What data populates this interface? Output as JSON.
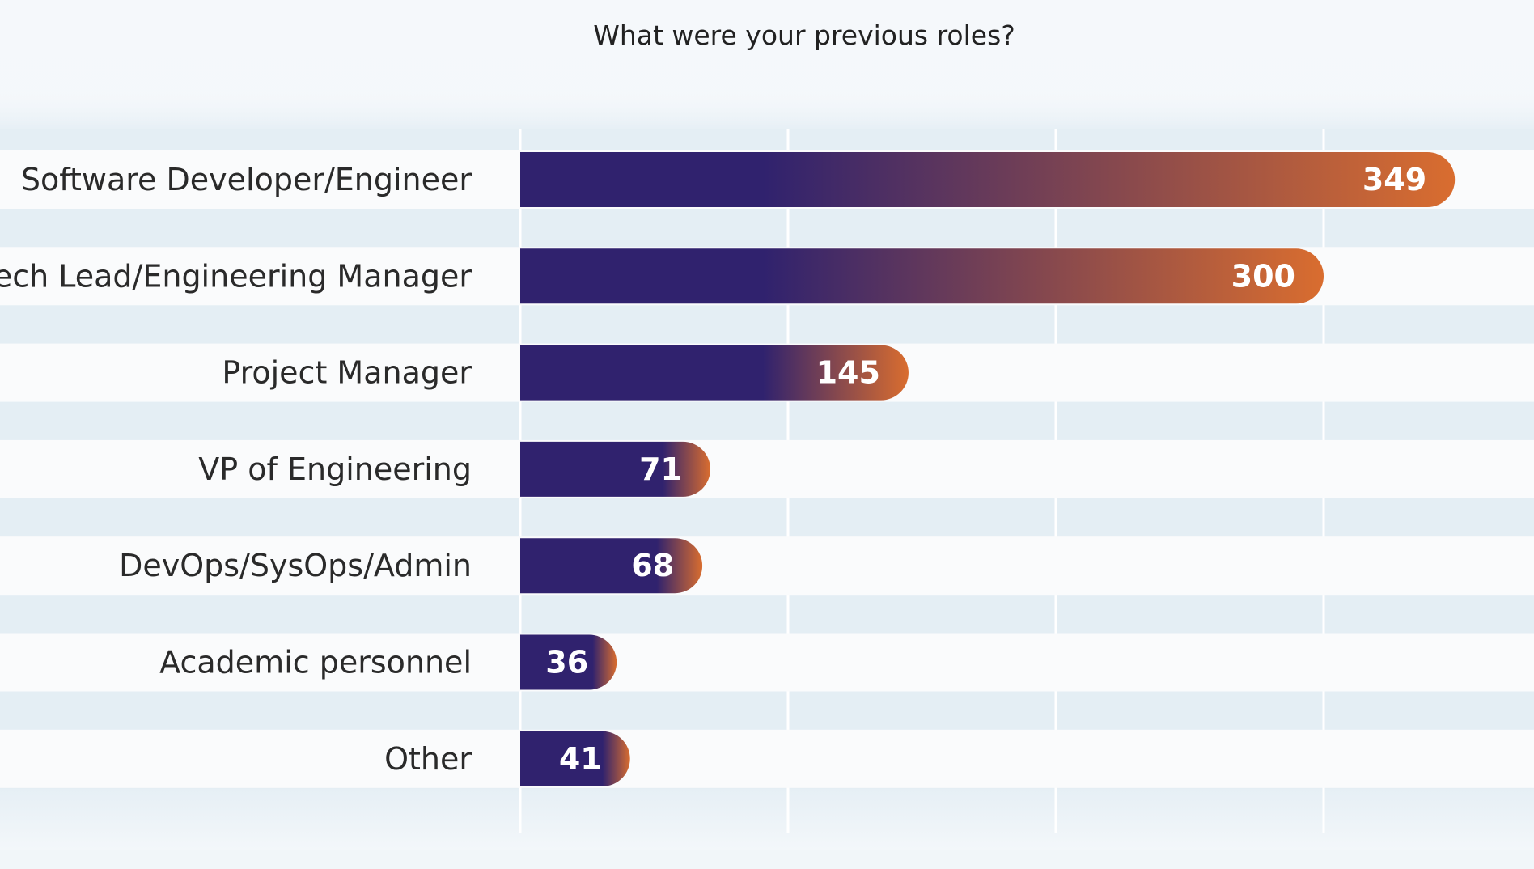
{
  "chart_data": {
    "type": "bar",
    "orientation": "horizontal",
    "title": "What were your previous roles?",
    "categories": [
      "Software Developer/Engineer",
      "Tech Lead/Engineering Manager",
      "Project Manager",
      "VP of Engineering",
      "DevOps/SysOps/Admin",
      "Academic personnel",
      "Other"
    ],
    "values": [
      349,
      300,
      145,
      71,
      68,
      36,
      41
    ],
    "xlim": [
      0,
      400
    ],
    "gridlines_x": [
      100,
      200,
      300
    ],
    "grid": true,
    "legend": "none",
    "colors": {
      "bar_start": "#30226e",
      "bar_end": "#d96d2f",
      "row_band": "#fafbfc",
      "gap_band": "#e4eef4",
      "gridline": "#ffffff",
      "background": "#f3f7fa"
    }
  }
}
